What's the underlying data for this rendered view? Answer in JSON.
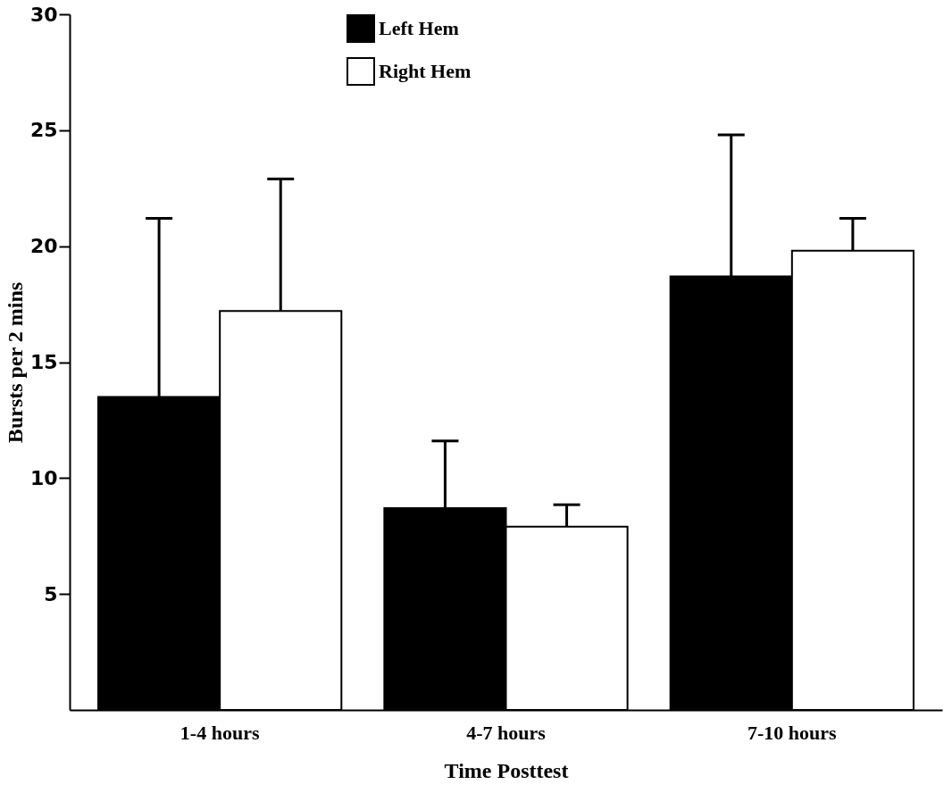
{
  "chart_data": {
    "type": "bar",
    "xlabel": "Time Posttest",
    "ylabel": "Bursts per 2 mins",
    "categories": [
      "1-4 hours",
      "4-7 hours",
      "7-10 hours"
    ],
    "series": [
      {
        "name": "Left Hem",
        "color": "#000000",
        "values": [
          13.5,
          8.7,
          18.7
        ],
        "errors": [
          [
            13.5,
            21.2
          ],
          [
            8.7,
            11.6
          ],
          [
            18.7,
            24.8
          ]
        ]
      },
      {
        "name": "Right Hem",
        "color": "#ffffff",
        "values": [
          17.2,
          7.9,
          19.8
        ],
        "errors": [
          [
            17.2,
            22.9
          ],
          [
            7.9,
            8.85
          ],
          [
            19.8,
            21.2
          ]
        ]
      }
    ],
    "ylim": [
      0,
      30
    ],
    "yticks": [
      5,
      10,
      15,
      20,
      25,
      30
    ],
    "grid": false,
    "legend": "top"
  }
}
